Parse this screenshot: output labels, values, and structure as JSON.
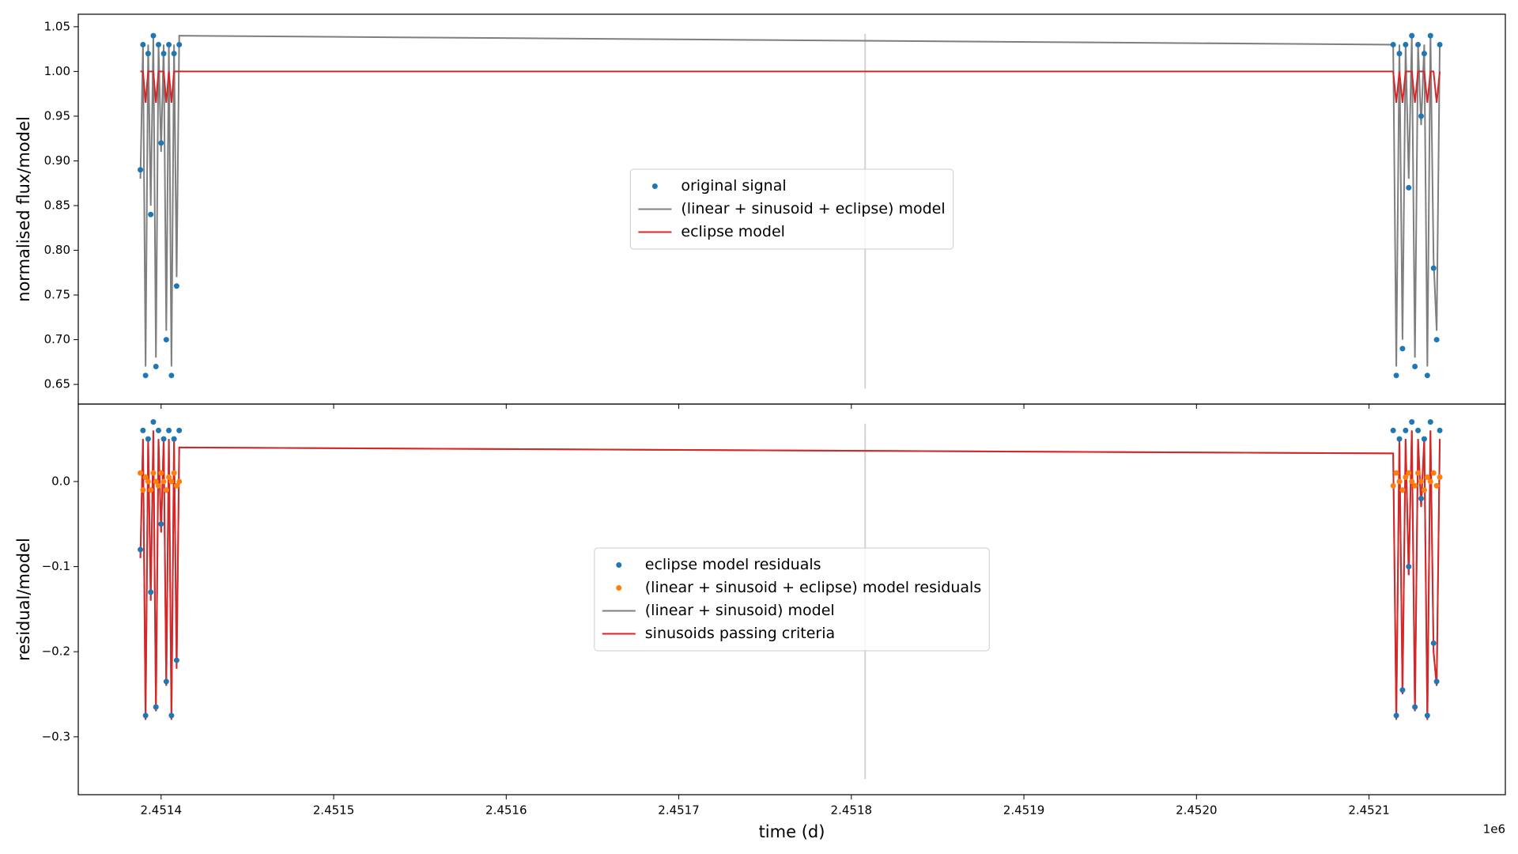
{
  "chart_data": [
    {
      "type": "line",
      "ylabel": "normalised flux/model",
      "xlim": [
        2451352,
        2452179
      ],
      "ylim": [
        0.628,
        1.064
      ],
      "yticks": [
        0.65,
        {
          "value": 0.7,
          "label": "0.70"
        },
        0.75,
        {
          "value": 0.8,
          "label": "0.80"
        },
        0.85,
        {
          "value": 0.9,
          "label": "0.90"
        },
        0.95,
        {
          "value": 1,
          "label": "1.00"
        },
        1.05
      ],
      "legend": "center",
      "vline": {
        "x": 2451808,
        "color": "#d3d3d3"
      },
      "x": [
        2451388,
        2451389.5,
        2451391,
        2451392.5,
        2451394,
        2451395.5,
        2451397,
        2451398.5,
        2451400,
        2451401.5,
        2451403,
        2451404.5,
        2451406,
        2451407.5,
        2451409,
        2451410.5,
        2452114,
        2452115.8,
        2452117.6,
        2452119.4,
        2452121.2,
        2452123,
        2452124.8,
        2452126.6,
        2452128.4,
        2452130.2,
        2452132,
        2452133.8,
        2452135.6,
        2452137.4,
        2452139.2,
        2452141
      ],
      "series": [
        {
          "name": "original signal",
          "kind": "scatter",
          "color": "#1f77b4",
          "values": [
            0.89,
            1.03,
            0.66,
            1.02,
            0.84,
            1.04,
            0.67,
            1.03,
            0.92,
            1.02,
            0.7,
            1.03,
            0.66,
            1.02,
            0.76,
            1.03,
            1.03,
            0.66,
            1.02,
            0.69,
            1.03,
            0.87,
            1.04,
            0.67,
            1.03,
            0.95,
            1.02,
            0.66,
            1.04,
            0.78,
            0.7,
            1.03
          ]
        },
        {
          "name": "(linear + sinusoid + eclipse) model",
          "kind": "line",
          "color": "#7f7f7f",
          "values": [
            0.88,
            1.03,
            0.67,
            1.03,
            0.85,
            1.04,
            0.68,
            1.03,
            0.91,
            1.03,
            0.71,
            1.03,
            0.67,
            1.03,
            0.77,
            1.04,
            1.03,
            0.67,
            1.03,
            0.7,
            1.03,
            0.88,
            1.04,
            0.68,
            1.03,
            0.94,
            1.03,
            0.67,
            1.04,
            0.79,
            0.71,
            1.03
          ]
        },
        {
          "name": "eclipse model",
          "kind": "line",
          "color": "#d62728",
          "values": [
            1,
            1,
            0.965,
            1,
            1,
            1,
            0.965,
            1,
            1,
            1,
            0.965,
            1,
            0.965,
            1,
            1,
            1,
            1,
            0.965,
            1,
            0.965,
            1,
            1,
            1,
            0.965,
            1,
            1,
            1,
            0.965,
            1,
            1,
            0.965,
            1
          ]
        }
      ]
    },
    {
      "type": "line",
      "ylabel": "residual/model",
      "xlabel": "time (d)",
      "x_offset_label": "1e6",
      "xlim": [
        2451352,
        2452179
      ],
      "ylim": [
        -0.368,
        0.091
      ],
      "xticks": [
        {
          "value": 2451400,
          "label": "2.4514"
        },
        {
          "value": 2451500,
          "label": "2.4515"
        },
        {
          "value": 2451600,
          "label": "2.4516"
        },
        {
          "value": 2451700,
          "label": "2.4517"
        },
        {
          "value": 2451800,
          "label": "2.4518"
        },
        {
          "value": 2451900,
          "label": "2.4519"
        },
        {
          "value": 2452000,
          "label": "2.4520"
        },
        {
          "value": 2452100,
          "label": "2.4521"
        }
      ],
      "yticks": [
        {
          "value": -0.3,
          "label": "−0.3"
        },
        {
          "value": -0.2,
          "label": "−0.2"
        },
        {
          "value": -0.1,
          "label": "−0.1"
        },
        {
          "value": 0,
          "label": "0.0"
        }
      ],
      "legend": "center",
      "vline": {
        "x": 2451808,
        "color": "#d3d3d3"
      },
      "x": [
        2451388,
        2451389.5,
        2451391,
        2451392.5,
        2451394,
        2451395.5,
        2451397,
        2451398.5,
        2451400,
        2451401.5,
        2451403,
        2451404.5,
        2451406,
        2451407.5,
        2451409,
        2451410.5,
        2452114,
        2452115.8,
        2452117.6,
        2452119.4,
        2452121.2,
        2452123,
        2452124.8,
        2452126.6,
        2452128.4,
        2452130.2,
        2452132,
        2452133.8,
        2452135.6,
        2452137.4,
        2452139.2,
        2452141
      ],
      "series": [
        {
          "name": "eclipse model residuals",
          "kind": "scatter",
          "color": "#1f77b4",
          "values": [
            -0.08,
            0.06,
            -0.275,
            0.05,
            -0.13,
            0.07,
            -0.265,
            0.06,
            -0.05,
            0.05,
            -0.235,
            0.06,
            -0.275,
            0.05,
            -0.21,
            0.06,
            0.06,
            -0.275,
            0.05,
            -0.245,
            0.06,
            -0.1,
            0.07,
            -0.265,
            0.06,
            -0.02,
            0.05,
            -0.275,
            0.07,
            -0.19,
            -0.235,
            0.06
          ]
        },
        {
          "name": "(linear + sinusoid + eclipse) model residuals",
          "kind": "scatter",
          "color": "#ff7f0e",
          "values": [
            0.01,
            -0.01,
            0.005,
            0,
            -0.01,
            0.01,
            0,
            -0.005,
            0.01,
            0,
            -0.01,
            0.005,
            0,
            0.01,
            -0.005,
            0,
            -0.005,
            0.01,
            0,
            -0.01,
            0.005,
            0.01,
            0,
            -0.005,
            0.01,
            0,
            -0.01,
            0.005,
            0,
            0.01,
            -0.005,
            0.005
          ]
        },
        {
          "name": "(linear + sinusoid) model",
          "kind": "line",
          "color": "#7f7f7f",
          "values": [
            -0.09,
            0.05,
            -0.28,
            0.05,
            -0.14,
            0.06,
            -0.27,
            0.05,
            -0.06,
            0.05,
            -0.24,
            0.05,
            -0.28,
            0.05,
            -0.22,
            0.04,
            0.033,
            -0.28,
            0.05,
            -0.25,
            0.05,
            -0.11,
            0.06,
            -0.27,
            0.05,
            -0.03,
            0.05,
            -0.28,
            0.06,
            -0.2,
            -0.24,
            0.05
          ]
        },
        {
          "name": "sinusoids passing criteria",
          "kind": "line",
          "color": "#d62728",
          "values": [
            -0.09,
            0.05,
            -0.28,
            0.05,
            -0.14,
            0.06,
            -0.27,
            0.05,
            -0.06,
            0.05,
            -0.24,
            0.05,
            -0.28,
            0.05,
            -0.22,
            0.04,
            0.033,
            -0.28,
            0.05,
            -0.25,
            0.05,
            -0.11,
            0.06,
            -0.27,
            0.05,
            -0.03,
            0.05,
            -0.28,
            0.06,
            -0.2,
            -0.24,
            0.05
          ]
        }
      ]
    }
  ]
}
